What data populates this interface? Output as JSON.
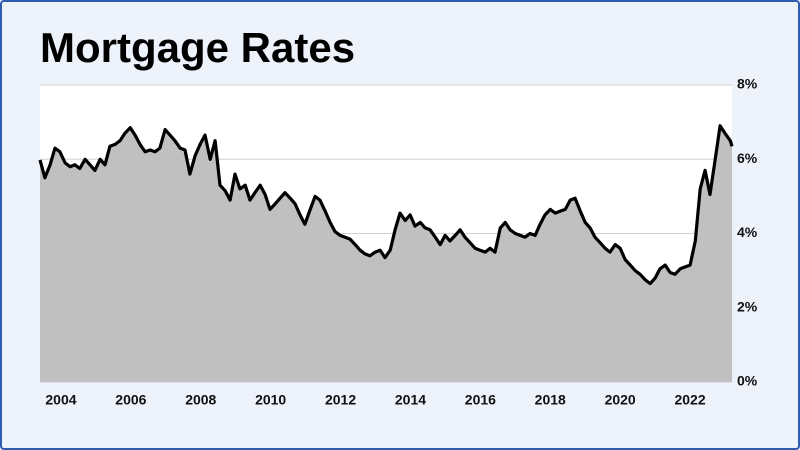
{
  "chart_data": {
    "type": "area",
    "title": "Mortgage Rates",
    "x": [
      2003.4,
      2003.54,
      2003.69,
      2003.83,
      2003.97,
      2004.12,
      2004.26,
      2004.4,
      2004.54,
      2004.69,
      2004.83,
      2004.97,
      2005.12,
      2005.26,
      2005.4,
      2005.55,
      2005.69,
      2005.83,
      2005.98,
      2006.12,
      2006.26,
      2006.41,
      2006.55,
      2006.69,
      2006.83,
      2006.98,
      2007.12,
      2007.26,
      2007.41,
      2007.55,
      2007.69,
      2007.84,
      2007.98,
      2008.12,
      2008.27,
      2008.41,
      2008.55,
      2008.7,
      2008.84,
      2008.98,
      2009.12,
      2009.27,
      2009.41,
      2009.55,
      2009.7,
      2009.84,
      2009.98,
      2010.13,
      2010.27,
      2010.41,
      2010.56,
      2010.7,
      2010.84,
      2010.98,
      2011.13,
      2011.27,
      2011.41,
      2011.56,
      2011.7,
      2011.84,
      2011.99,
      2012.13,
      2012.27,
      2012.42,
      2012.56,
      2012.7,
      2012.84,
      2012.99,
      2013.13,
      2013.27,
      2013.42,
      2013.56,
      2013.7,
      2013.85,
      2013.99,
      2014.13,
      2014.28,
      2014.42,
      2014.56,
      2014.71,
      2014.85,
      2014.99,
      2015.13,
      2015.28,
      2015.42,
      2015.56,
      2015.71,
      2015.85,
      2015.99,
      2016.14,
      2016.28,
      2016.42,
      2016.57,
      2016.71,
      2016.85,
      2017.0,
      2017.14,
      2017.28,
      2017.42,
      2017.57,
      2017.71,
      2017.85,
      2018.0,
      2018.14,
      2018.28,
      2018.43,
      2018.57,
      2018.71,
      2018.86,
      2019.0,
      2019.14,
      2019.28,
      2019.43,
      2019.57,
      2019.71,
      2019.86,
      2020.0,
      2020.14,
      2020.29,
      2020.43,
      2020.57,
      2020.72,
      2020.86,
      2021.0,
      2021.14,
      2021.29,
      2021.43,
      2021.57,
      2021.72,
      2021.86,
      2022.0,
      2022.15,
      2022.29,
      2022.43,
      2022.57,
      2022.72,
      2022.86,
      2023.0,
      2023.15,
      2023.2
    ],
    "values": [
      5.98,
      5.5,
      5.85,
      6.3,
      6.2,
      5.9,
      5.8,
      5.85,
      5.75,
      6.0,
      5.85,
      5.7,
      6.0,
      5.85,
      6.35,
      6.4,
      6.5,
      6.7,
      6.85,
      6.65,
      6.4,
      6.2,
      6.25,
      6.2,
      6.3,
      6.8,
      6.65,
      6.5,
      6.3,
      6.25,
      5.6,
      6.1,
      6.4,
      6.65,
      6.0,
      6.5,
      5.3,
      5.15,
      4.9,
      5.6,
      5.2,
      5.3,
      4.9,
      5.1,
      5.3,
      5.05,
      4.65,
      4.8,
      4.95,
      5.1,
      4.95,
      4.8,
      4.5,
      4.25,
      4.65,
      5.0,
      4.9,
      4.6,
      4.3,
      4.05,
      3.95,
      3.9,
      3.85,
      3.7,
      3.55,
      3.45,
      3.4,
      3.5,
      3.55,
      3.35,
      3.55,
      4.1,
      4.55,
      4.35,
      4.5,
      4.2,
      4.3,
      4.15,
      4.1,
      3.9,
      3.7,
      3.95,
      3.8,
      3.95,
      4.1,
      3.9,
      3.75,
      3.6,
      3.55,
      3.5,
      3.6,
      3.5,
      4.15,
      4.3,
      4.1,
      4.0,
      3.95,
      3.9,
      4.0,
      3.95,
      4.25,
      4.5,
      4.65,
      4.55,
      4.6,
      4.65,
      4.9,
      4.95,
      4.6,
      4.3,
      4.15,
      3.9,
      3.75,
      3.6,
      3.5,
      3.7,
      3.6,
      3.3,
      3.15,
      3.0,
      2.9,
      2.75,
      2.65,
      2.8,
      3.05,
      3.15,
      2.95,
      2.9,
      3.05,
      3.1,
      3.15,
      3.8,
      5.2,
      5.7,
      5.05,
      6.0,
      6.9,
      6.7,
      6.5,
      6.35
    ],
    "line_color": "#000000",
    "fill_color": "#c0c0c0",
    "xlim": [
      2003.4,
      2023.2
    ],
    "xticks": [
      2004,
      2006,
      2008,
      2010,
      2012,
      2014,
      2016,
      2018,
      2020,
      2022
    ],
    "ylim": [
      0,
      8
    ],
    "yticks": [
      {
        "value": 0,
        "label": "0%"
      },
      {
        "value": 2,
        "label": "2%"
      },
      {
        "value": 4,
        "label": "4%"
      },
      {
        "value": 6,
        "label": "6%"
      },
      {
        "value": 8,
        "label": "8%"
      }
    ],
    "grid": true
  }
}
